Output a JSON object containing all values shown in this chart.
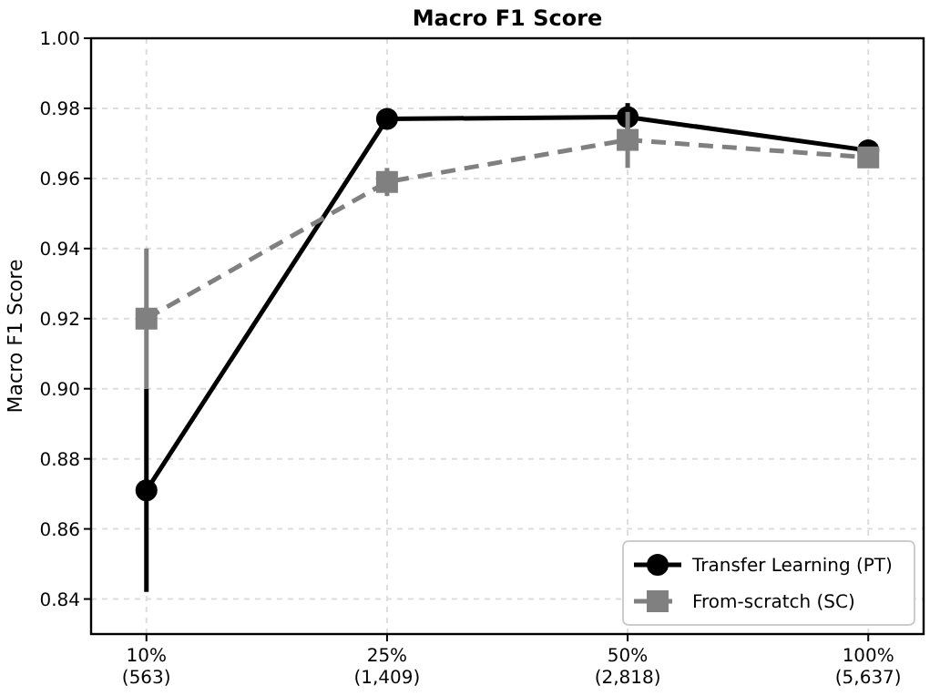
{
  "chart_data": {
    "type": "line",
    "title": "Macro F1 Score",
    "ylabel": "Macro F1 Score",
    "categories": [
      "10%\n(563)",
      "25%\n(1,409)",
      "50%\n(2,818)",
      "100%\n(5,637)"
    ],
    "series": [
      {
        "name": "Transfer Learning (PT)",
        "color": "#000000",
        "values": [
          0.871,
          0.977,
          0.9775,
          0.968
        ],
        "errors": [
          0.029,
          0.002,
          0.004,
          0.001
        ],
        "marker": "circle",
        "line_style": "solid"
      },
      {
        "name": "From-scratch (SC)",
        "color": "#808080",
        "values": [
          0.92,
          0.959,
          0.971,
          0.966
        ],
        "errors": [
          0.02,
          0.004,
          0.008,
          0.002
        ],
        "marker": "square",
        "line_style": "dashed"
      }
    ],
    "ylim": [
      0.83,
      1.0
    ],
    "yticks": [
      {
        "value": 0.84,
        "label": "0.84"
      },
      {
        "value": 0.86,
        "label": "0.86"
      },
      {
        "value": 0.88,
        "label": "0.88"
      },
      {
        "value": 0.9,
        "label": "0.90"
      },
      {
        "value": 0.92,
        "label": "0.92"
      },
      {
        "value": 0.94,
        "label": "0.94"
      },
      {
        "value": 0.96,
        "label": "0.96"
      },
      {
        "value": 0.98,
        "label": "0.98"
      },
      {
        "value": 1.0,
        "label": "1.00"
      }
    ],
    "grid": true,
    "legend": "bottom right"
  }
}
